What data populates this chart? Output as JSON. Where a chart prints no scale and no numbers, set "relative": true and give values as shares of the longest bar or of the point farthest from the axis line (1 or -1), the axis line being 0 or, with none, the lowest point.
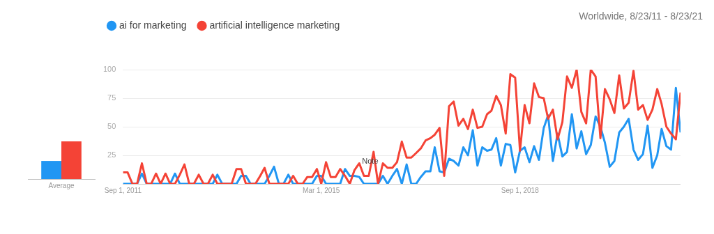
{
  "chart_data": [
    {
      "type": "bar",
      "relative": true,
      "categories": [
        "Average"
      ],
      "series": [
        {
          "color": "#2196f3",
          "values": [
            0.48
          ]
        },
        {
          "color": "#f44336",
          "values": [
            1
          ]
        }
      ]
    },
    {
      "type": "line",
      "subtitle": "Worldwide, 8/23/11 - 8/23/21",
      "legend": "top left",
      "grid": "y",
      "marker": "none",
      "x": [
        "2011-09",
        "2011-10",
        "2011-11",
        "2011-12",
        "2012-01",
        "2012-02",
        "2012-03",
        "2012-04",
        "2012-05",
        "2012-06",
        "2012-07",
        "2012-08",
        "2012-09",
        "2012-10",
        "2012-11",
        "2012-12",
        "2013-01",
        "2013-02",
        "2013-03",
        "2013-04",
        "2013-05",
        "2013-06",
        "2013-07",
        "2013-08",
        "2013-09",
        "2013-10",
        "2013-11",
        "2013-12",
        "2014-01",
        "2014-02",
        "2014-03",
        "2014-04",
        "2014-05",
        "2014-06",
        "2014-07",
        "2014-08",
        "2014-09",
        "2014-10",
        "2014-11",
        "2014-12",
        "2015-01",
        "2015-02",
        "2015-03",
        "2015-04",
        "2015-05",
        "2015-06",
        "2015-07",
        "2015-08",
        "2015-09",
        "2015-10",
        "2015-11",
        "2015-12",
        "2016-01",
        "2016-02",
        "2016-03",
        "2016-04",
        "2016-05",
        "2016-06",
        "2016-07",
        "2016-08",
        "2016-09",
        "2016-10",
        "2016-11",
        "2016-12",
        "2017-01",
        "2017-02",
        "2017-03",
        "2017-04",
        "2017-05",
        "2017-06",
        "2017-07",
        "2017-08",
        "2017-09",
        "2017-10",
        "2017-11",
        "2017-12",
        "2018-01",
        "2018-02",
        "2018-03",
        "2018-04",
        "2018-05",
        "2018-06",
        "2018-07",
        "2018-08",
        "2018-09",
        "2018-10",
        "2018-11",
        "2018-12",
        "2019-01",
        "2019-02",
        "2019-03",
        "2019-04",
        "2019-05",
        "2019-06",
        "2019-07",
        "2019-08",
        "2019-09",
        "2019-10",
        "2019-11",
        "2019-12",
        "2020-01",
        "2020-02",
        "2020-03",
        "2020-04",
        "2020-05",
        "2020-06",
        "2020-07",
        "2020-08",
        "2020-09",
        "2020-10",
        "2020-11",
        "2020-12",
        "2021-01",
        "2021-02",
        "2021-03",
        "2021-04",
        "2021-05",
        "2021-06",
        "2021-07"
      ],
      "xlim": [
        "2011-09",
        "2021-07"
      ],
      "xticks": [
        {
          "value": "2011-09-01",
          "label": "Sep 1, 2011"
        },
        {
          "value": "2015-03-01",
          "label": "Mar 1, 2015"
        },
        {
          "value": "2018-09-01",
          "label": "Sep 1, 2018"
        }
      ],
      "ylim": [
        0,
        100
      ],
      "yticks": [
        {
          "value": 0,
          "label": null
        },
        25,
        50,
        75,
        100
      ],
      "series": [
        {
          "name": "ai for marketing",
          "color": "#2196f3",
          "values": [
            0,
            0,
            0,
            0,
            9,
            0,
            0,
            0,
            0,
            0,
            0,
            9,
            0,
            0,
            0,
            0,
            0,
            0,
            0,
            0,
            8,
            0,
            0,
            0,
            0,
            7,
            7,
            0,
            0,
            0,
            0,
            7,
            15,
            0,
            0,
            8,
            0,
            0,
            0,
            0,
            0,
            7,
            7,
            0,
            0,
            0,
            0,
            13,
            7,
            7,
            6,
            0,
            0,
            0,
            0,
            7,
            0,
            7,
            13,
            0,
            17,
            0,
            0,
            6,
            11,
            11,
            32,
            11,
            10,
            22,
            20,
            16,
            32,
            25,
            47,
            16,
            32,
            29,
            30,
            40,
            16,
            35,
            34,
            10,
            29,
            32,
            19,
            33,
            21,
            49,
            60,
            20,
            44,
            24,
            28,
            61,
            31,
            46,
            26,
            34,
            59,
            50,
            36,
            15,
            20,
            45,
            50,
            57,
            30,
            21,
            26,
            51,
            14,
            25,
            48,
            33,
            30,
            84,
            45
          ]
        },
        {
          "name": "artificial intelligence marketing",
          "color": "#f44336",
          "values": [
            10,
            10,
            0,
            0,
            18,
            0,
            0,
            9,
            0,
            9,
            0,
            0,
            8,
            17,
            0,
            0,
            8,
            0,
            0,
            8,
            0,
            0,
            0,
            0,
            13,
            13,
            0,
            0,
            0,
            7,
            14,
            0,
            0,
            0,
            0,
            0,
            7,
            0,
            0,
            6,
            6,
            13,
            0,
            19,
            6,
            6,
            13,
            7,
            0,
            12,
            18,
            7,
            7,
            28,
            0,
            18,
            14,
            14,
            19,
            37,
            23,
            23,
            27,
            31,
            38,
            40,
            43,
            49,
            7,
            68,
            72,
            51,
            57,
            48,
            65,
            49,
            50,
            61,
            64,
            77,
            69,
            44,
            96,
            93,
            29,
            69,
            53,
            88,
            76,
            75,
            57,
            65,
            39,
            54,
            94,
            84,
            100,
            63,
            53,
            100,
            94,
            40,
            83,
            74,
            62,
            95,
            66,
            71,
            99,
            65,
            69,
            56,
            65,
            83,
            70,
            50,
            44,
            39,
            80
          ]
        }
      ],
      "annotations": [
        {
          "text": "Note",
          "x": "2015-11",
          "y": 6
        }
      ]
    }
  ]
}
